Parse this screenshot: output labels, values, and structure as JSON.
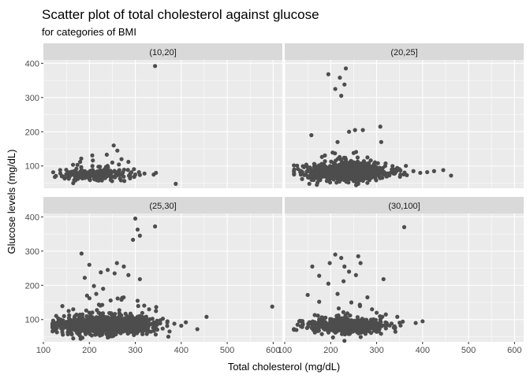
{
  "chart_data": {
    "type": "scatter",
    "title": "Scatter plot of total cholesterol against glucose",
    "subtitle": "for categories of BMI",
    "xlabel": "Total cholesterol (mg/dL)",
    "ylabel": "Glucose levels (mg/dL)",
    "xlim": [
      100,
      620
    ],
    "ylim": [
      35,
      410
    ],
    "x_ticks": [
      "100",
      "200",
      "300",
      "400",
      "500",
      "600"
    ],
    "y_ticks": [
      "100",
      "200",
      "300",
      "400"
    ],
    "grid": true,
    "point_color": "#4d4d4d",
    "panel_bg": "#ebebeb",
    "strip_bg": "#d9d9d9",
    "facets": [
      {
        "label": "(10,20]",
        "points": [
          [
            343,
            392
          ],
          [
            253,
            160
          ],
          [
            238,
            133
          ],
          [
            261,
            145
          ],
          [
            270,
            120
          ],
          [
            285,
            112
          ],
          [
            180,
            112
          ],
          [
            250,
            110
          ],
          [
            308,
            82
          ],
          [
            320,
            78
          ],
          [
            340,
            75
          ],
          [
            345,
            80
          ],
          [
            388,
            48
          ],
          [
            165,
            50
          ],
          [
            170,
            58
          ],
          [
            125,
            68
          ],
          [
            140,
            70
          ],
          [
            300,
            75
          ]
        ],
        "cloud": {
          "x_center": 215,
          "x_spread": 38,
          "y_center": 76,
          "y_spread": 8,
          "n": 220,
          "seed": 11
        }
      },
      {
        "label": "(20,25]",
        "points": [
          [
            233,
            385
          ],
          [
            195,
            368
          ],
          [
            220,
            358
          ],
          [
            210,
            325
          ],
          [
            230,
            338
          ],
          [
            223,
            305
          ],
          [
            308,
            215
          ],
          [
            253,
            205
          ],
          [
            270,
            205
          ],
          [
            240,
            200
          ],
          [
            158,
            190
          ],
          [
            215,
            170
          ],
          [
            310,
            170
          ],
          [
            250,
            138
          ],
          [
            280,
            125
          ],
          [
            135,
            75
          ],
          [
            150,
            70
          ],
          [
            425,
            85
          ],
          [
            445,
            88
          ],
          [
            462,
            72
          ],
          [
            410,
            82
          ],
          [
            395,
            80
          ],
          [
            380,
            85
          ],
          [
            170,
            45
          ],
          [
            260,
            48
          ]
        ],
        "cloud": {
          "x_center": 235,
          "x_spread": 45,
          "y_center": 82,
          "y_spread": 12,
          "n": 900,
          "seed": 23
        }
      },
      {
        "label": "(25,30]",
        "points": [
          [
            300,
            395
          ],
          [
            343,
            372
          ],
          [
            305,
            363
          ],
          [
            295,
            333
          ],
          [
            310,
            345
          ],
          [
            183,
            293
          ],
          [
            260,
            265
          ],
          [
            275,
            255
          ],
          [
            200,
            260
          ],
          [
            240,
            245
          ],
          [
            225,
            238
          ],
          [
            255,
            235
          ],
          [
            285,
            230
          ],
          [
            310,
            218
          ],
          [
            190,
            222
          ],
          [
            210,
            198
          ],
          [
            230,
            190
          ],
          [
            270,
            158
          ],
          [
            305,
            155
          ],
          [
            195,
            170
          ],
          [
            215,
            175
          ],
          [
            330,
            130
          ],
          [
            345,
            125
          ],
          [
            165,
            130
          ],
          [
            155,
            125
          ],
          [
            145,
            110
          ],
          [
            125,
            75
          ],
          [
            130,
            80
          ],
          [
            598,
            138
          ],
          [
            455,
            108
          ],
          [
            410,
            92
          ],
          [
            435,
            72
          ],
          [
            400,
            82
          ],
          [
            385,
            88
          ],
          [
            370,
            95
          ],
          [
            165,
            45
          ],
          [
            240,
            48
          ]
        ],
        "cloud": {
          "x_center": 238,
          "x_spread": 48,
          "y_center": 82,
          "y_spread": 12,
          "n": 1200,
          "seed": 37
        }
      },
      {
        "label": "(30,100]",
        "points": [
          [
            360,
            370
          ],
          [
            210,
            290
          ],
          [
            223,
            280
          ],
          [
            260,
            285
          ],
          [
            265,
            265
          ],
          [
            198,
            265
          ],
          [
            160,
            255
          ],
          [
            230,
            255
          ],
          [
            240,
            240
          ],
          [
            255,
            230
          ],
          [
            228,
            212
          ],
          [
            175,
            228
          ],
          [
            315,
            218
          ],
          [
            195,
            205
          ],
          [
            215,
            175
          ],
          [
            150,
            172
          ],
          [
            280,
            165
          ],
          [
            245,
            150
          ],
          [
            175,
            152
          ],
          [
            290,
            130
          ],
          [
            300,
            120
          ],
          [
            320,
            115
          ],
          [
            345,
            108
          ],
          [
            310,
            105
          ],
          [
            400,
            95
          ],
          [
            385,
            90
          ],
          [
            138,
            95
          ],
          [
            128,
            85
          ],
          [
            160,
            80
          ],
          [
            230,
            38
          ],
          [
            205,
            48
          ]
        ],
        "cloud": {
          "x_center": 235,
          "x_spread": 42,
          "y_center": 82,
          "y_spread": 10,
          "n": 600,
          "seed": 53
        }
      }
    ]
  }
}
